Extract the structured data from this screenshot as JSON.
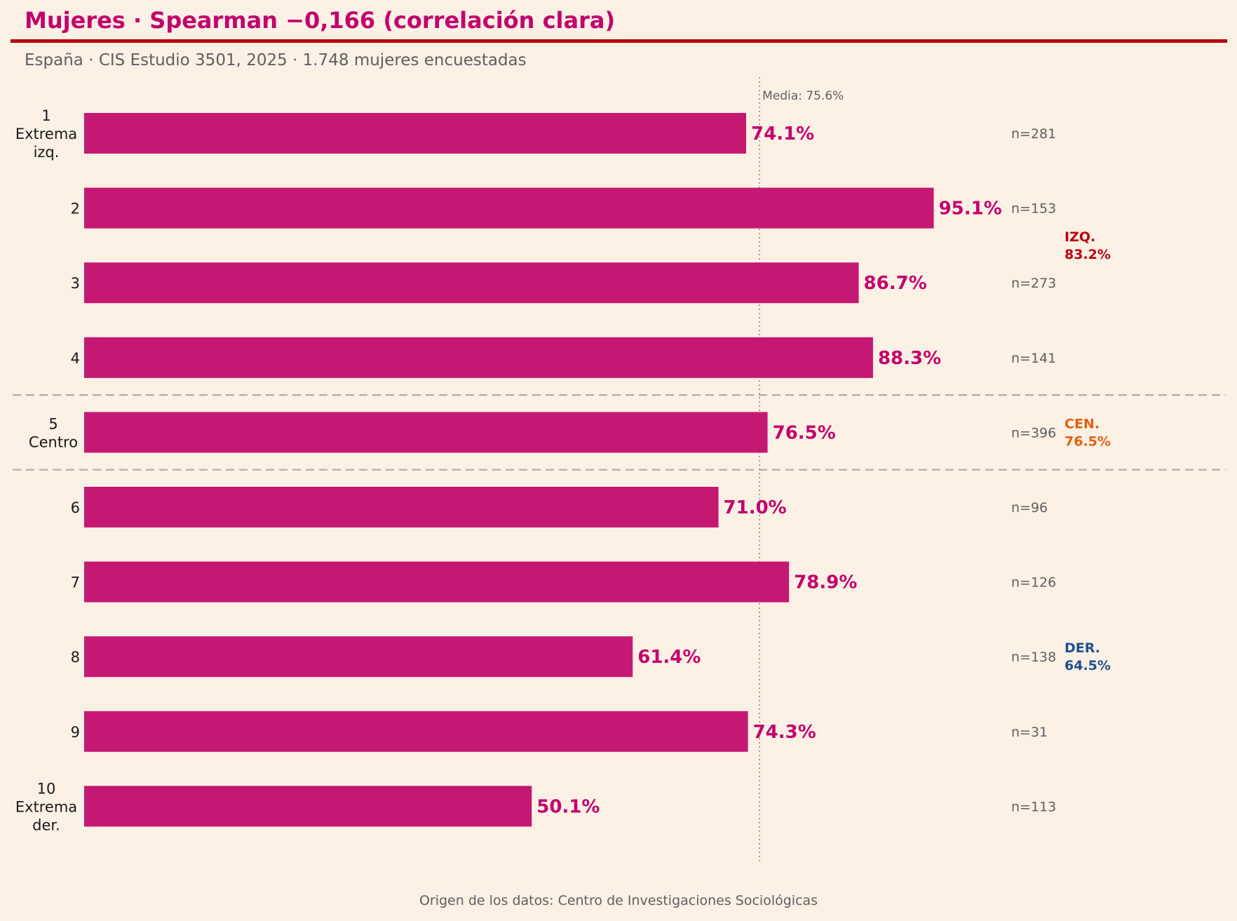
{
  "header": {
    "title": "Mujeres · Spearman −0,166 (correlación clara)",
    "subtitle": "España · CIS Estudio 3501, 2025 · 1.748 mujeres encuestadas"
  },
  "footer": {
    "source": "Origen de los datos: Centro de Investigaciones Sociológicas"
  },
  "colors": {
    "background": "#fdf0e5",
    "bar": "#c51873",
    "value_label": "#c2006c",
    "title": "#c2006c",
    "title_rule": "#b8000e",
    "izq": "#b8000e",
    "cen": "#e0620f",
    "der": "#1e4f91",
    "muted_text": "#5f5f5f",
    "separator": "#b4aaa3"
  },
  "chart_data": {
    "type": "bar",
    "orientation": "horizontal",
    "categories": [
      "1\nExtrema\nizq.",
      "2",
      "3",
      "4",
      "5\nCentro",
      "6",
      "7",
      "8",
      "9",
      "10\nExtrema\nder."
    ],
    "values": [
      74.1,
      95.1,
      86.7,
      88.3,
      76.5,
      71.0,
      78.9,
      61.4,
      74.3,
      50.1
    ],
    "value_labels": [
      "74.1%",
      "95.1%",
      "86.7%",
      "88.3%",
      "76.5%",
      "71.0%",
      "78.9%",
      "61.4%",
      "74.3%",
      "50.1%"
    ],
    "n_labels": [
      "n=281",
      "n=153",
      "n=273",
      "n=141",
      "n=396",
      "n=96",
      "n=126",
      "n=138",
      "n=31",
      "n=113"
    ],
    "xlim": [
      0,
      100
    ],
    "mean": {
      "value": 75.6,
      "label": "Media: 75.6%"
    },
    "group_separators_after": [
      4,
      5
    ],
    "groups": [
      {
        "name": "IZQ.",
        "value": "83.2%",
        "color": "#b8000e",
        "center_index": 1.5
      },
      {
        "name": "CEN.",
        "value": "76.5%",
        "color": "#e0620f",
        "center_index": 4
      },
      {
        "name": "DER.",
        "value": "64.5%",
        "color": "#1e4f91",
        "center_index": 7
      }
    ],
    "grid": false,
    "legend": "none"
  }
}
